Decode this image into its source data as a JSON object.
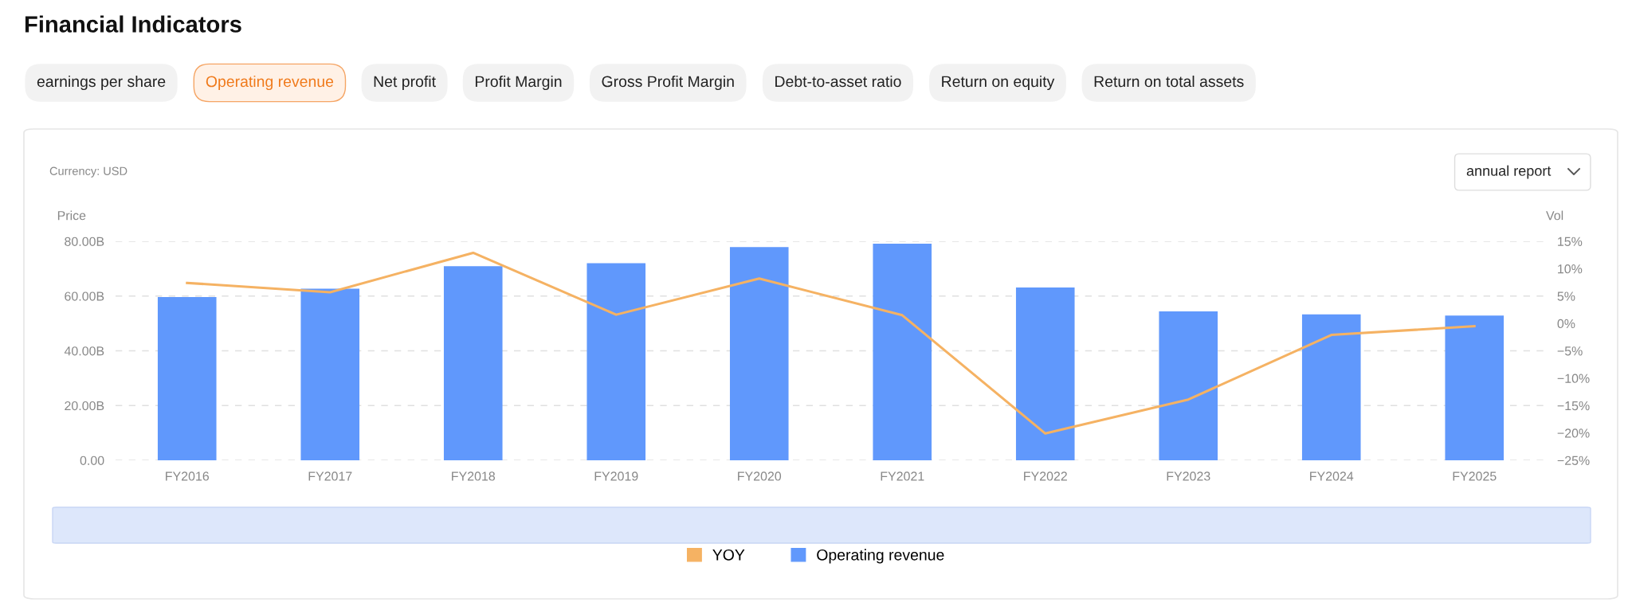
{
  "chart_data": {
    "type": "bar",
    "title": "Financial Indicators",
    "subtitle": "Currency: USD",
    "annotations": [
      "earnings per share",
      "Operating revenue",
      "Net profit",
      "Profit Margin",
      "Gross Profit Margin",
      "Debt-to-asset ratio",
      "Return on equity",
      "Return on total assets",
      "annual report"
    ],
    "ylabel": "Price",
    "y2label": "Vol",
    "categories": [
      "FY2016",
      "FY2017",
      "FY2018",
      "FY2019",
      "FY2020",
      "FY2021",
      "FY2022",
      "FY2023",
      "FY2024",
      "FY2025"
    ],
    "series": [
      {
        "name": "YOY",
        "type": "line",
        "axis": "y2",
        "color": "#f5b263",
        "values": [
          7.4,
          5.7,
          12.9,
          1.6,
          8.2,
          1.5,
          -20.1,
          -13.9,
          -2.1,
          -0.5
        ]
      },
      {
        "name": "Operating revenue",
        "color": "#6098fc",
        "values": [
          59.6,
          62.7,
          70.9,
          72.0,
          77.9,
          79.1,
          63.1,
          54.4,
          53.3,
          52.9
        ]
      }
    ],
    "ylim": [
      0,
      80
    ],
    "yticks": [
      {
        "value": 0,
        "label": "0.00"
      },
      {
        "value": 20,
        "label": "20.00B"
      },
      {
        "value": 40,
        "label": "40.00B"
      },
      {
        "value": 60,
        "label": "60.00B"
      },
      {
        "value": 80,
        "label": "80.00B"
      }
    ],
    "y2lim": [
      -25,
      15
    ],
    "y2ticks": [
      {
        "value": -25,
        "label": "−25%"
      },
      {
        "value": -20,
        "label": "−20%"
      },
      {
        "value": -15,
        "label": "−15%"
      },
      {
        "value": -10,
        "label": "−10%"
      },
      {
        "value": -5,
        "label": "−5%"
      },
      {
        "value": 0,
        "label": "0%"
      },
      {
        "value": 5,
        "label": "5%"
      },
      {
        "value": 10,
        "label": "10%"
      },
      {
        "value": 15,
        "label": "15%"
      }
    ],
    "grid": "y",
    "legend": "bottom",
    "marker": "none",
    "line_style": "solid"
  }
}
